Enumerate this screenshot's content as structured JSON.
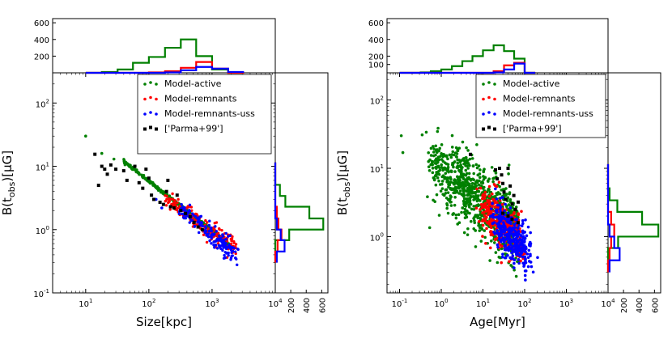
{
  "colors": {
    "active": "#008000",
    "remnants": "#ff0000",
    "uss": "#0000ff",
    "parma": "#000000"
  },
  "chart_data": [
    {
      "type": "scatter",
      "xlabel": "Size[kpc]",
      "ylabel": "B(t_obs)[μG]",
      "xscale": "log",
      "yscale": "log",
      "xlim": [
        3,
        10000
      ],
      "ylim": [
        0.1,
        300
      ],
      "xtick_labels": [
        "10^1",
        "10^2",
        "10^3",
        "10^4"
      ],
      "ytick_labels": [
        "10^-1",
        "10^0",
        "10^1",
        "10^2"
      ],
      "legend": {
        "placement": "upper right",
        "entries": [
          "Model-active",
          "Model-remnants",
          "Model-remnants-uss",
          "['Parma+99']"
        ]
      },
      "series": [
        {
          "name": "Model-active",
          "color": "#008000",
          "trend": {
            "from": [
              40,
              12
            ],
            "to": [
              2000,
              0.55
            ]
          },
          "outliers": [
            [
              10,
              30
            ],
            [
              18,
              16
            ],
            [
              28,
              13
            ]
          ]
        },
        {
          "name": "Model-remnants",
          "color": "#ff0000",
          "trend": {
            "from": [
              180,
              3.0
            ],
            "to": [
              2400,
              0.55
            ]
          }
        },
        {
          "name": "Model-remnants-uss",
          "color": "#0000ff",
          "trend": {
            "from": [
              300,
              2.2
            ],
            "to": [
              2600,
              0.4
            ]
          },
          "outliers": [
            [
              130,
              3.0
            ],
            [
              160,
              2.2
            ]
          ]
        },
        {
          "name": "['Parma+99']",
          "color": "#000000",
          "points": [
            [
              14,
              15.5
            ],
            [
              16,
              5
            ],
            [
              18,
              10
            ],
            [
              20,
              9
            ],
            [
              22,
              7.5
            ],
            [
              25,
              10.5
            ],
            [
              30,
              9
            ],
            [
              40,
              8.5
            ],
            [
              45,
              6
            ],
            [
              60,
              10
            ],
            [
              70,
              5.5
            ],
            [
              80,
              4.5
            ],
            [
              90,
              9
            ],
            [
              100,
              6.5
            ],
            [
              110,
              3.5
            ],
            [
              120,
              3
            ],
            [
              150,
              2.7
            ],
            [
              170,
              2.5
            ],
            [
              190,
              4
            ],
            [
              200,
              6
            ],
            [
              220,
              2.3
            ],
            [
              250,
              2.2
            ],
            [
              280,
              3.5
            ],
            [
              320,
              2.0
            ],
            [
              380,
              1.8
            ],
            [
              450,
              1.6
            ],
            [
              520,
              1.3
            ],
            [
              600,
              1.1
            ],
            [
              700,
              1.0
            ]
          ]
        }
      ],
      "marginal_top": {
        "type": "histogram",
        "yticks": [
          200,
          400,
          600
        ],
        "bin_edges": [
          10,
          18,
          32,
          56,
          100,
          180,
          320,
          560,
          1000,
          1800,
          3200
        ],
        "series": [
          {
            "name": "Model-active",
            "counts": [
              0,
              10,
              40,
              120,
              190,
              300,
              400,
              200,
              40,
              0
            ]
          },
          {
            "name": "Model-remnants",
            "counts": [
              0,
              0,
              0,
              0,
              5,
              20,
              60,
              130,
              50,
              0
            ]
          },
          {
            "name": "Model-remnants-uss",
            "counts": [
              0,
              0,
              0,
              0,
              0,
              5,
              30,
              70,
              50,
              10
            ]
          }
        ]
      },
      "marginal_right": {
        "type": "histogram",
        "xticks": [
          200,
          400,
          600
        ],
        "bin_edges": [
          0.3,
          0.45,
          0.68,
          1.0,
          1.5,
          2.3,
          3.4,
          5.1,
          7.7,
          11.5
        ],
        "series": [
          {
            "name": "Model-active",
            "counts": [
              0,
              0,
              180,
              620,
              440,
              130,
              60,
              0,
              0
            ]
          },
          {
            "name": "Model-remnants",
            "counts": [
              0,
              30,
              80,
              40,
              20,
              0,
              0,
              0,
              0
            ]
          },
          {
            "name": "Model-remnants-uss",
            "counts": [
              20,
              120,
              70,
              20,
              0,
              0,
              0,
              0,
              0
            ]
          }
        ]
      }
    },
    {
      "type": "scatter",
      "xlabel": "Age[Myr]",
      "ylabel": "B(t_obs)[μG]",
      "xscale": "log",
      "yscale": "log",
      "xlim": [
        0.05,
        10000
      ],
      "ylim": [
        0.15,
        250
      ],
      "xtick_labels": [
        "10^-1",
        "10^0",
        "10^1",
        "10^2",
        "10^3",
        "10^4"
      ],
      "ytick_labels": [
        "10^0",
        "10^1",
        "10^2"
      ],
      "legend": {
        "placement": "upper right",
        "entries": [
          "Model-active",
          "Model-remnants",
          "Model-remnants-uss",
          "['Parma+99']"
        ]
      },
      "series": [
        {
          "name": "Model-active",
          "color": "#008000",
          "cloud": {
            "from": [
              0.5,
              13
            ],
            "to": [
              60,
              1.3
            ],
            "spread": 0.25
          },
          "outliers": [
            [
              0.11,
              30
            ],
            [
              0.12,
              17
            ]
          ]
        },
        {
          "name": "Model-remnants",
          "color": "#ff0000",
          "cloud": {
            "from": [
              10,
              2.8
            ],
            "to": [
              80,
              0.9
            ],
            "spread": 0.18
          }
        },
        {
          "name": "Model-remnants-uss",
          "color": "#0000ff",
          "cloud": {
            "from": [
              20,
              1.6
            ],
            "to": [
              120,
              0.6
            ],
            "spread": 0.18
          }
        },
        {
          "name": "['Parma+99']",
          "color": "#000000",
          "points": [
            [
              5,
              16
            ],
            [
              20,
              9.5
            ],
            [
              22,
              7
            ],
            [
              25,
              10
            ],
            [
              28,
              8
            ],
            [
              30,
              6
            ],
            [
              32,
              4.5
            ],
            [
              35,
              3.5
            ],
            [
              40,
              10
            ],
            [
              45,
              5.5
            ],
            [
              50,
              3
            ],
            [
              55,
              4
            ],
            [
              60,
              2.5
            ],
            [
              70,
              3.2
            ],
            [
              30,
              2.2
            ],
            [
              40,
              2.0
            ],
            [
              50,
              1.8
            ],
            [
              70,
              1.6
            ]
          ]
        }
      ],
      "marginal_top": {
        "type": "histogram",
        "yticks": [
          100,
          200,
          400,
          600
        ],
        "bin_edges": [
          0.1,
          0.18,
          0.32,
          0.56,
          1.0,
          1.8,
          3.2,
          5.6,
          10,
          18,
          32,
          56,
          100,
          180
        ],
        "series": [
          {
            "name": "Model-active",
            "counts": [
              0,
              0,
              5,
              20,
              40,
              80,
              140,
              200,
              270,
              330,
              260,
              170,
              0
            ]
          },
          {
            "name": "Model-remnants",
            "counts": [
              0,
              0,
              0,
              0,
              0,
              0,
              0,
              0,
              0,
              20,
              90,
              120,
              0
            ]
          },
          {
            "name": "Model-remnants-uss",
            "counts": [
              0,
              0,
              0,
              0,
              0,
              0,
              0,
              0,
              0,
              5,
              40,
              110,
              0
            ]
          }
        ]
      },
      "marginal_right": {
        "type": "histogram",
        "xticks": [
          200,
          400,
          600
        ],
        "bin_edges": [
          0.3,
          0.45,
          0.68,
          1.0,
          1.5,
          2.3,
          3.4,
          5.1,
          7.7,
          11.5
        ],
        "series": [
          {
            "name": "Model-active",
            "counts": [
              0,
              0,
              130,
              650,
              440,
              120,
              20,
              0,
              0
            ]
          },
          {
            "name": "Model-remnants",
            "counts": [
              0,
              20,
              40,
              80,
              40,
              0,
              0,
              0,
              0
            ]
          },
          {
            "name": "Model-remnants-uss",
            "counts": [
              20,
              150,
              80,
              20,
              0,
              0,
              0,
              0,
              0
            ]
          }
        ]
      }
    }
  ]
}
